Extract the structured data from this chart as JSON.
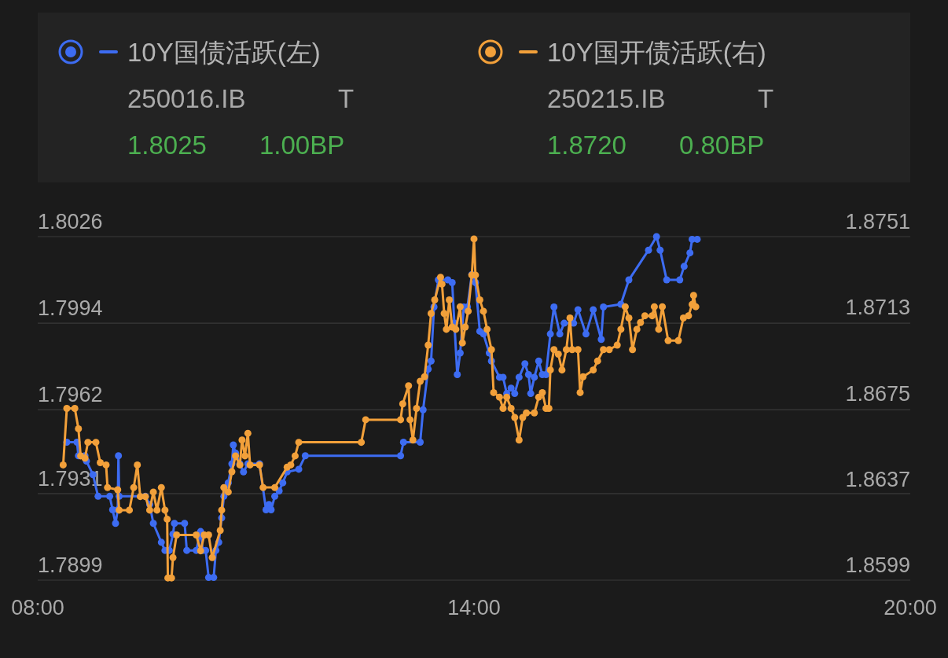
{
  "chart_data": {
    "type": "line",
    "marker": "circle",
    "line_style": "solid",
    "grid": "y",
    "legend": "top",
    "annotations": [
      "250016.IB",
      "T",
      "1.8025",
      "1.00BP",
      "250215.IB",
      "T",
      "1.8720",
      "0.80BP"
    ],
    "xlim": [
      8,
      20
    ],
    "xticks": [
      {
        "value": 8,
        "label": "08:00"
      },
      {
        "value": 14,
        "label": "14:00"
      },
      {
        "value": 20,
        "label": "20:00"
      }
    ],
    "ylim": [
      1.7899,
      1.8026
    ],
    "yticks": [
      1.7899,
      1.7931,
      1.7962,
      1.7994,
      1.8026
    ],
    "y2lim": [
      1.8599,
      1.8751
    ],
    "y2ticks": [
      1.8599,
      1.8637,
      1.8675,
      1.8713,
      1.8751
    ],
    "series": [
      {
        "name": "10Y国债活跃(左)",
        "color": "#3d6cf2",
        "axis": "y",
        "x": [
          8.4,
          8.54,
          8.56,
          8.65,
          8.67,
          8.76,
          8.83,
          8.99,
          9.03,
          9.07,
          9.1,
          9.11,
          9.12,
          9.48,
          9.54,
          9.59,
          9.7,
          9.75,
          9.81,
          9.86,
          9.88,
          10.02,
          10.05,
          10.18,
          10.24,
          10.27,
          10.31,
          10.35,
          10.42,
          10.45,
          10.49,
          10.53,
          10.56,
          10.62,
          10.67,
          10.69,
          10.72,
          10.78,
          10.83,
          10.89,
          11.05,
          11.14,
          11.18,
          11.21,
          11.26,
          11.32,
          11.37,
          11.43,
          11.59,
          11.68,
          12.99,
          13.03,
          13.26,
          13.3,
          13.37,
          13.41,
          13.45,
          13.51,
          13.64,
          13.7,
          13.73,
          13.77,
          13.81,
          13.86,
          13.91,
          13.97,
          14.02,
          14.08,
          14.13,
          14.21,
          14.24,
          14.35,
          14.4,
          14.45,
          14.51,
          14.56,
          14.62,
          14.7,
          14.75,
          14.78,
          14.83,
          14.89,
          14.94,
          14.99,
          15.05,
          15.1,
          15.18,
          15.24,
          15.37,
          15.43,
          15.54,
          15.64,
          15.75,
          15.78,
          16.02,
          16.13,
          16.4,
          16.51,
          16.56,
          16.65,
          16.83,
          16.89,
          16.97,
          17.0,
          17.07
        ],
        "values": [
          1.795,
          1.795,
          1.7945,
          1.7945,
          1.7943,
          1.7938,
          1.793,
          1.793,
          1.7925,
          1.792,
          1.7925,
          1.7945,
          1.793,
          1.793,
          1.7927,
          1.792,
          1.7913,
          1.791,
          1.791,
          1.7916,
          1.792,
          1.792,
          1.791,
          1.791,
          1.7917,
          1.791,
          1.791,
          1.79,
          1.79,
          1.791,
          1.7913,
          1.7922,
          1.793,
          1.7935,
          1.7942,
          1.7949,
          1.7946,
          1.7942,
          1.7939,
          1.7942,
          1.7942,
          1.7925,
          1.7927,
          1.7925,
          1.793,
          1.7932,
          1.7935,
          1.7939,
          1.794,
          1.7945,
          1.7945,
          1.795,
          1.795,
          1.7962,
          1.7977,
          1.798,
          1.8,
          1.801,
          1.801,
          1.8009,
          1.7994,
          1.7975,
          1.7983,
          1.8,
          1.8,
          1.8012,
          1.8009,
          1.7991,
          1.799,
          1.7983,
          1.798,
          1.7974,
          1.7974,
          1.7968,
          1.797,
          1.7968,
          1.7974,
          1.7979,
          1.7975,
          1.7968,
          1.7974,
          1.798,
          1.7975,
          1.7975,
          1.799,
          1.8,
          1.799,
          1.7994,
          1.7994,
          1.7999,
          1.799,
          1.7999,
          1.7988,
          1.8,
          1.8001,
          1.801,
          1.8021,
          1.8026,
          1.8021,
          1.801,
          1.801,
          1.8015,
          1.802,
          1.8025,
          1.8025
        ]
      },
      {
        "name": "10Y国开债活跃(右)",
        "color": "#f2a03a",
        "axis": "y2",
        "x": [
          8.35,
          8.4,
          8.51,
          8.56,
          8.59,
          8.65,
          8.69,
          8.8,
          8.86,
          8.94,
          8.96,
          9.1,
          9.12,
          9.26,
          9.32,
          9.37,
          9.41,
          9.48,
          9.54,
          9.59,
          9.64,
          9.7,
          9.75,
          9.78,
          9.79,
          9.84,
          9.86,
          9.91,
          10.18,
          10.24,
          10.29,
          10.35,
          10.4,
          10.51,
          10.53,
          10.56,
          10.62,
          10.67,
          10.72,
          10.78,
          10.81,
          10.85,
          10.89,
          10.92,
          11.05,
          11.1,
          11.26,
          11.43,
          11.48,
          11.54,
          11.59,
          12.45,
          12.51,
          12.99,
          13.02,
          13.1,
          13.12,
          13.16,
          13.21,
          13.26,
          13.32,
          13.37,
          13.41,
          13.46,
          13.54,
          13.56,
          13.59,
          13.62,
          13.66,
          13.7,
          13.75,
          13.81,
          13.84,
          13.88,
          13.92,
          13.97,
          14.0,
          14.02,
          14.08,
          14.13,
          14.18,
          14.24,
          14.27,
          14.35,
          14.4,
          14.45,
          14.51,
          14.56,
          14.62,
          14.67,
          14.72,
          14.83,
          14.89,
          14.94,
          14.99,
          15.03,
          15.05,
          15.1,
          15.16,
          15.21,
          15.27,
          15.32,
          15.35,
          15.43,
          15.46,
          15.5,
          15.64,
          15.7,
          15.78,
          15.86,
          15.97,
          16.02,
          16.08,
          16.13,
          16.18,
          16.24,
          16.29,
          16.35,
          16.45,
          16.48,
          16.54,
          16.59,
          16.67,
          16.81,
          16.88,
          16.95,
          17.0,
          17.02,
          17.05
        ],
        "values": [
          1.865,
          1.8675,
          1.8675,
          1.8666,
          1.8654,
          1.8653,
          1.866,
          1.866,
          1.8651,
          1.865,
          1.864,
          1.8639,
          1.863,
          1.863,
          1.864,
          1.865,
          1.8636,
          1.8636,
          1.863,
          1.8638,
          1.863,
          1.864,
          1.863,
          1.8626,
          1.86,
          1.86,
          1.8609,
          1.8619,
          1.8619,
          1.8612,
          1.8619,
          1.8619,
          1.8609,
          1.8621,
          1.863,
          1.864,
          1.8638,
          1.8647,
          1.8654,
          1.865,
          1.8661,
          1.8654,
          1.8664,
          1.865,
          1.865,
          1.864,
          1.864,
          1.8649,
          1.865,
          1.8654,
          1.866,
          1.866,
          1.867,
          1.867,
          1.8677,
          1.8685,
          1.867,
          1.8661,
          1.8675,
          1.8687,
          1.8689,
          1.8703,
          1.8717,
          1.8723,
          1.8733,
          1.873,
          1.8717,
          1.871,
          1.8723,
          1.8711,
          1.871,
          1.872,
          1.8704,
          1.8711,
          1.8718,
          1.8734,
          1.875,
          1.8734,
          1.8723,
          1.8718,
          1.871,
          1.8701,
          1.8682,
          1.868,
          1.8675,
          1.868,
          1.8675,
          1.8671,
          1.8661,
          1.8671,
          1.8673,
          1.8673,
          1.868,
          1.8682,
          1.8675,
          1.8675,
          1.8692,
          1.8701,
          1.8699,
          1.8692,
          1.8701,
          1.8715,
          1.8701,
          1.8701,
          1.8682,
          1.8689,
          1.8692,
          1.8696,
          1.8701,
          1.8701,
          1.8703,
          1.871,
          1.872,
          1.8715,
          1.8701,
          1.871,
          1.8713,
          1.8716,
          1.8716,
          1.872,
          1.871,
          1.872,
          1.8705,
          1.8705,
          1.8715,
          1.8716,
          1.8721,
          1.8725,
          1.872
        ]
      }
    ]
  }
}
